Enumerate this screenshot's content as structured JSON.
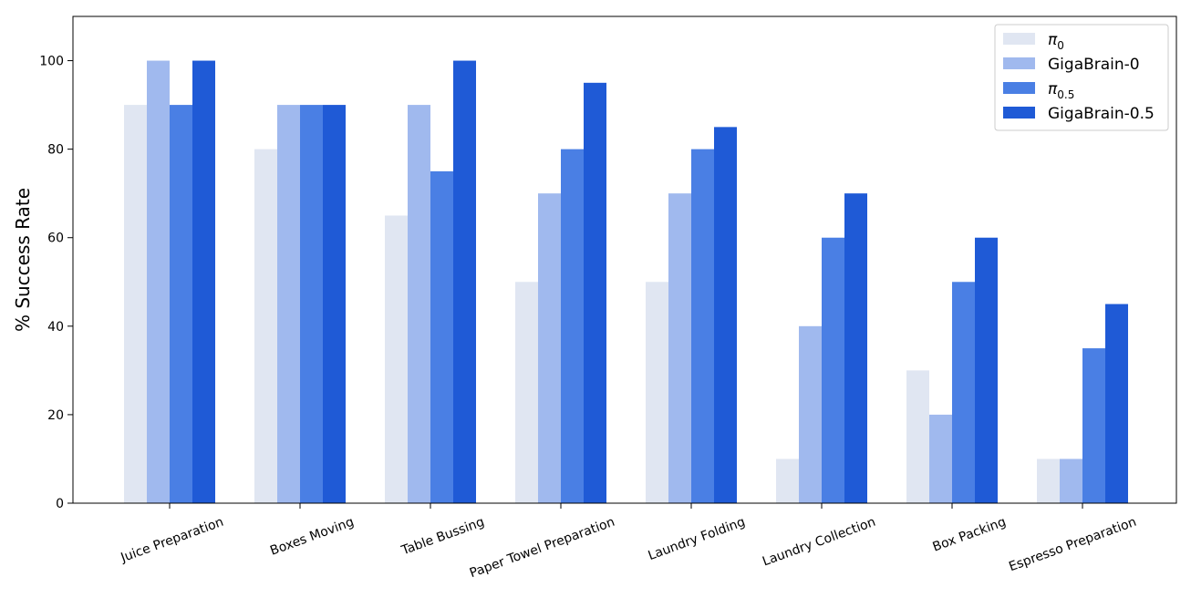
{
  "chart_data": {
    "type": "bar",
    "title": "",
    "xlabel": "",
    "ylabel": "% Success Rate",
    "ylim": [
      0,
      110
    ],
    "yticks": [
      0,
      20,
      40,
      60,
      80,
      100
    ],
    "grid": false,
    "legend_placement": "top-right",
    "categories": [
      "Juice Preparation",
      "Boxes Moving",
      "Table Bussing",
      "Paper Towel Preparation",
      "Laundry Folding",
      "Laundry Collection",
      "Box Packing",
      "Espresso Preparation"
    ],
    "series": [
      {
        "name": "π0",
        "name_base": "π",
        "name_sub": "0",
        "color": "#e0e6f2",
        "values": [
          90,
          80,
          65,
          50,
          50,
          10,
          30,
          10
        ]
      },
      {
        "name": "GigaBrain-0",
        "name_base": "GigaBrain-0",
        "name_sub": "",
        "color": "#a0b9ee",
        "values": [
          100,
          90,
          90,
          70,
          70,
          40,
          20,
          10
        ]
      },
      {
        "name": "π0.5",
        "name_base": "π",
        "name_sub": "0.5",
        "color": "#4a7fe4",
        "values": [
          90,
          90,
          75,
          80,
          80,
          60,
          50,
          35
        ]
      },
      {
        "name": "GigaBrain-0.5",
        "name_base": "GigaBrain-0.5",
        "name_sub": "",
        "color": "#1f5ad6",
        "values": [
          100,
          90,
          100,
          95,
          85,
          70,
          60,
          45
        ]
      }
    ]
  }
}
